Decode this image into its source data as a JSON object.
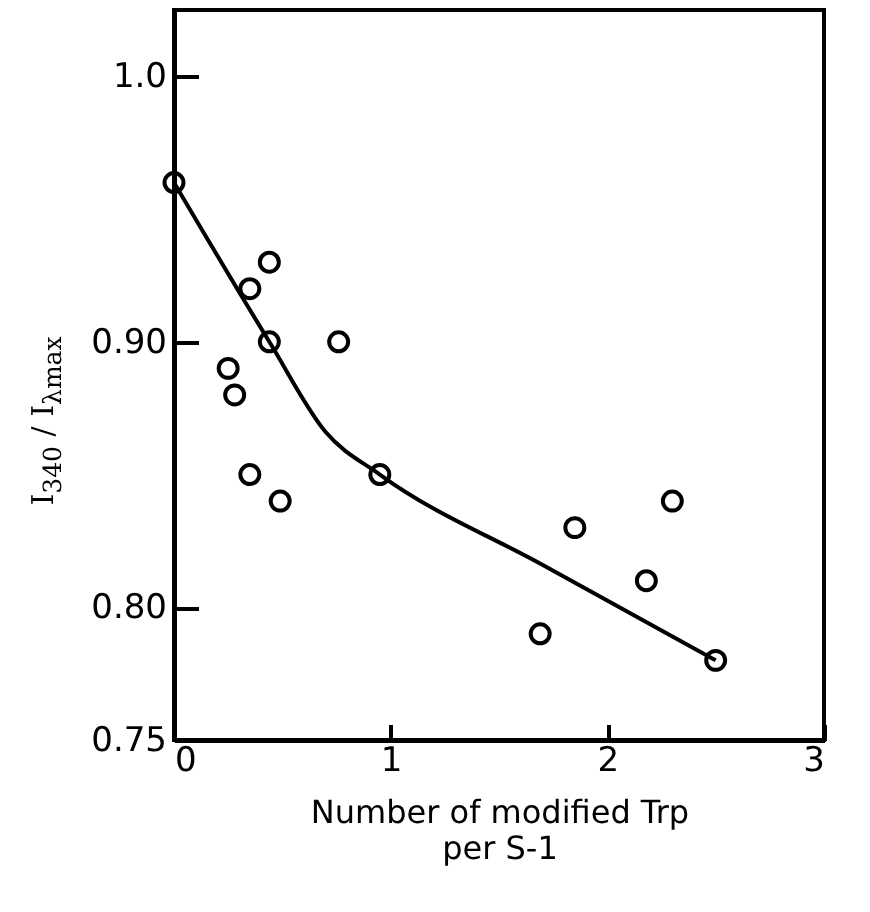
{
  "chart_data": {
    "type": "scatter",
    "xlabel": "Number of modified Trp\nper S-1",
    "ylabel": "I$_{340}$ / I$_{λmax}$",
    "xlim": [
      0,
      3
    ],
    "xticks": [
      0,
      1,
      2,
      3
    ],
    "ylim": [
      0.75,
      1.025
    ],
    "yticks": [
      {
        "value": 0.75,
        "label": "0.75"
      },
      {
        "value": 0.8,
        "label": "0.80"
      },
      {
        "value": 0.9,
        "label": "0.90"
      },
      {
        "value": 1.0,
        "label": "1.0"
      }
    ],
    "grid": false,
    "series": [
      {
        "marker": "circle",
        "color": "#000000",
        "x": [
          0,
          0.25,
          0.28,
          0.35,
          0.35,
          0.44,
          0.44,
          0.49,
          0.76,
          0.95,
          1.69,
          1.85,
          2.18,
          2.3,
          2.5
        ],
        "values": [
          0.96,
          0.89,
          0.88,
          0.92,
          0.85,
          0.93,
          0.9,
          0.84,
          0.9,
          0.85,
          0.79,
          0.83,
          0.81,
          0.84,
          0.78
        ]
      },
      {
        "type": "line",
        "marker": "none",
        "color": "#000000",
        "x": [
          0,
          0.44,
          0.7,
          0.95,
          1.7,
          2.5
        ],
        "values": [
          0.96,
          0.9,
          0.866,
          0.85,
          0.816,
          0.78
        ]
      }
    ]
  }
}
